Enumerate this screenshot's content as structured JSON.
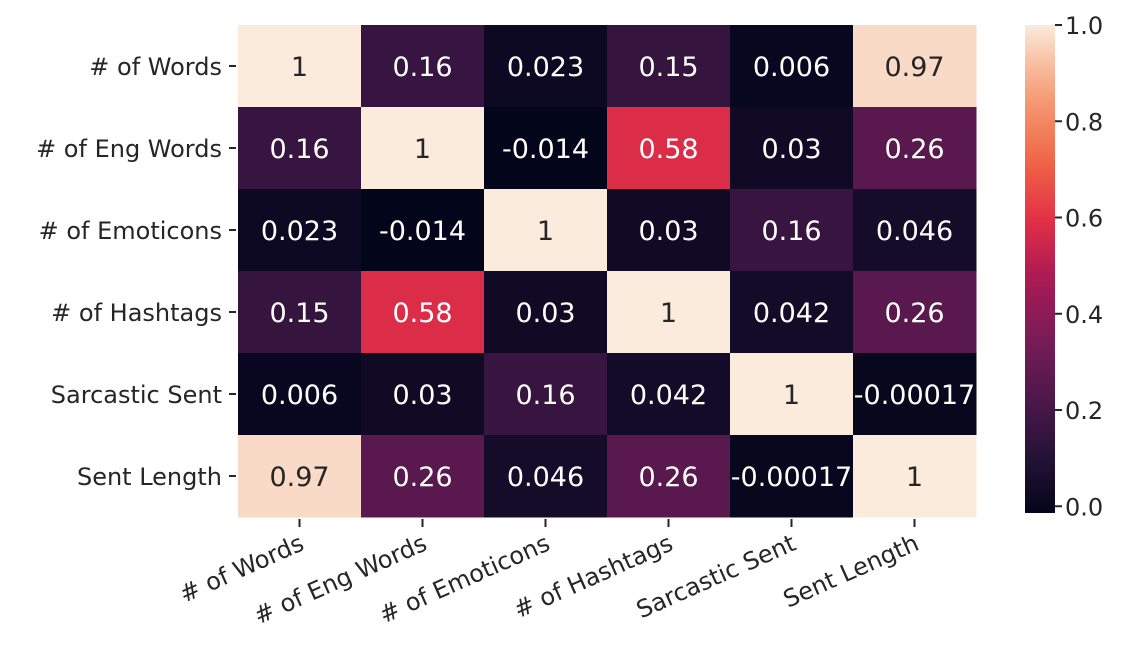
{
  "chart_data": {
    "type": "heatmap",
    "title": "",
    "xlabel": "",
    "ylabel": "",
    "rows": [
      "# of Words",
      "# of Eng Words",
      "# of Emoticons",
      "# of Hashtags",
      "Sarcastic Sent",
      "Sent Length"
    ],
    "columns": [
      "# of Words",
      "# of Eng Words",
      "# of Emoticons",
      "# of Hashtags",
      "Sarcastic Sent",
      "Sent Length"
    ],
    "values": [
      [
        1,
        0.16,
        0.023,
        0.15,
        0.006,
        0.97
      ],
      [
        0.16,
        1,
        -0.014,
        0.58,
        0.03,
        0.26
      ],
      [
        0.023,
        -0.014,
        1,
        0.03,
        0.16,
        0.046
      ],
      [
        0.15,
        0.58,
        0.03,
        1,
        0.042,
        0.26
      ],
      [
        0.006,
        0.03,
        0.16,
        0.042,
        1,
        -0.00017
      ],
      [
        0.97,
        0.26,
        0.046,
        0.26,
        -0.00017,
        1
      ]
    ],
    "cell_labels": [
      [
        "1",
        "0.16",
        "0.023",
        "0.15",
        "0.006",
        "0.97"
      ],
      [
        "0.16",
        "1",
        "-0.014",
        "0.58",
        "0.03",
        "0.26"
      ],
      [
        "0.023",
        "-0.014",
        "1",
        "0.03",
        "0.16",
        "0.046"
      ],
      [
        "0.15",
        "0.58",
        "0.03",
        "1",
        "0.042",
        "0.26"
      ],
      [
        "0.006",
        "0.03",
        "0.16",
        "0.042",
        "1",
        "-0.00017"
      ],
      [
        "0.97",
        "0.26",
        "0.046",
        "0.26",
        "-0.00017",
        "1"
      ]
    ],
    "colorbar": {
      "range": [
        -0.014,
        1.0
      ],
      "ticks": [
        0.0,
        0.2,
        0.4,
        0.6,
        0.8,
        1.0
      ],
      "tick_labels": [
        "0.0",
        "0.2",
        "0.4",
        "0.6",
        "0.8",
        "1.0"
      ]
    },
    "colormap": "rocket",
    "grid": false,
    "legend": "colorbar-right"
  }
}
